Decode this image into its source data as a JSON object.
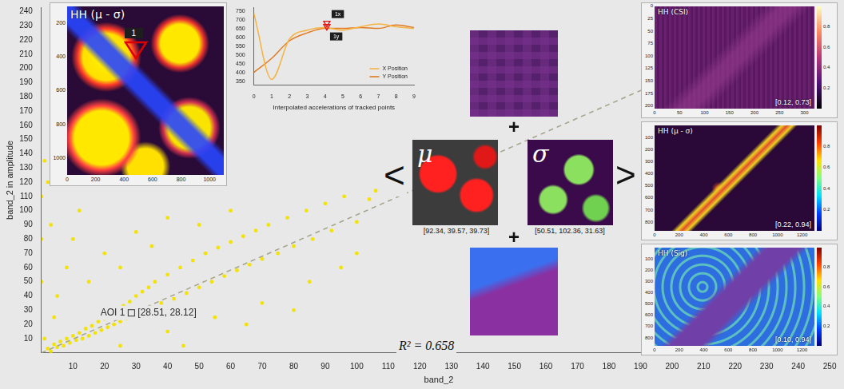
{
  "chart_data": [
    {
      "type": "scatter",
      "x_label": "band_2",
      "y_label": "band_2 in amplitude",
      "xlim": [
        0,
        252
      ],
      "ylim": [
        0,
        243
      ],
      "xticks": [
        10,
        20,
        30,
        40,
        50,
        60,
        70,
        80,
        90,
        100,
        110,
        120,
        130,
        140,
        150,
        160,
        170,
        180,
        190,
        200,
        210,
        220,
        230,
        240,
        250
      ],
      "yticks": [
        10,
        20,
        30,
        40,
        50,
        60,
        70,
        80,
        90,
        100,
        110,
        120,
        130,
        140,
        150,
        160,
        170,
        180,
        190,
        200,
        210,
        220,
        230,
        240
      ],
      "grid": false,
      "series": [
        {
          "type": "scatter",
          "color": "#f2e205",
          "marker": "circle",
          "x": [
            0,
            0,
            0,
            1,
            1,
            2,
            2,
            3,
            3,
            4,
            4,
            5,
            5,
            6,
            7,
            8,
            8,
            9,
            10,
            10,
            11,
            12,
            12,
            13,
            14,
            15,
            15,
            16,
            17,
            18,
            19,
            20,
            20,
            21,
            22,
            23,
            24,
            25,
            25,
            25,
            26,
            27,
            28,
            29,
            30,
            30,
            31,
            32,
            33,
            34,
            35,
            35,
            36,
            38,
            40,
            40,
            40,
            42,
            44,
            45,
            46,
            48,
            50,
            50,
            52,
            54,
            55,
            56,
            58,
            60,
            60,
            62,
            64,
            65,
            66,
            68,
            70,
            70,
            72,
            75,
            78,
            80,
            80,
            84,
            85,
            86,
            90,
            92,
            95,
            96,
            100,
            100,
            104,
            106
          ],
          "y": [
            50,
            80,
            110,
            10,
            135,
            3,
            120,
            1,
            90,
            6,
            25,
            4,
            40,
            8,
            5,
            10,
            60,
            7,
            12,
            80,
            9,
            14,
            100,
            10,
            17,
            12,
            50,
            19,
            14,
            22,
            16,
            24,
            70,
            18,
            27,
            20,
            30,
            22,
            5,
            60,
            33,
            24,
            36,
            26,
            40,
            85,
            28,
            43,
            30,
            46,
            32,
            75,
            50,
            35,
            55,
            15,
            95,
            38,
            60,
            5,
            42,
            65,
            46,
            90,
            70,
            50,
            25,
            74,
            54,
            78,
            100,
            58,
            82,
            20,
            62,
            86,
            66,
            35,
            90,
            70,
            95,
            75,
            30,
            100,
            50,
            80,
            105,
            86,
            60,
            110,
            92,
            70,
            108,
            114
          ]
        },
        {
          "type": "line",
          "color": "#a3a38a",
          "line_style": "dashed",
          "x": [
            0,
            203
          ],
          "y": [
            0,
            197
          ]
        }
      ],
      "annotations": [
        {
          "text": "AOI 1",
          "marker": "square",
          "x": 28.51,
          "y": 28.12,
          "value_text": "[28.51, 28.12]"
        },
        {
          "text": "R² = 0.658"
        }
      ]
    },
    {
      "type": "line",
      "x_label": "Interpolated accelerations of tracked points",
      "x": [
        0,
        1,
        2,
        3,
        4,
        5,
        6,
        7,
        8,
        9
      ],
      "xlim": [
        0,
        9
      ],
      "xticks": [
        0,
        1,
        2,
        3,
        4,
        5,
        6,
        7,
        8,
        9
      ],
      "ylim": [
        330,
        770
      ],
      "yticks": [
        350,
        400,
        450,
        500,
        550,
        600,
        650,
        700,
        750
      ],
      "grid": false,
      "legend": "lower right",
      "series": [
        {
          "name": "X Position",
          "color": "#f5b342",
          "values": [
            735,
            360,
            590,
            640,
            655,
            640,
            660,
            675,
            660,
            650
          ]
        },
        {
          "name": "Y Position",
          "color": "#e07b24",
          "values": [
            400,
            480,
            580,
            625,
            650,
            650,
            655,
            650,
            670,
            655
          ]
        }
      ],
      "annotations": [
        {
          "text": "1x",
          "marker": "triangle",
          "x": 4.1,
          "y": 668
        },
        {
          "text": "1y",
          "marker": "triangle",
          "x": 4.1,
          "y": 650
        }
      ]
    }
  ],
  "images": [
    {
      "title": "HH (μ - σ)",
      "xlim": [
        0,
        1100
      ],
      "ylim": [
        100,
        1100
      ],
      "xticks": [
        0,
        200,
        400,
        600,
        800,
        1000
      ],
      "yticks": [
        200,
        400,
        600,
        800,
        1000
      ],
      "markers": [
        {
          "text": "1",
          "x": 480,
          "y": 360
        }
      ]
    },
    {
      "title": "HH (CSI)",
      "xlim": [
        0,
        320
      ],
      "ylim": [
        0,
        205
      ],
      "xticks": [
        0,
        50,
        100,
        150,
        200,
        250,
        300
      ],
      "yticks": [
        0,
        25,
        50,
        75,
        100,
        125,
        150,
        175,
        200
      ],
      "range_text": "[0.12, 0.73]",
      "colorbar_lim": [
        0,
        1
      ],
      "colorbar_ticks": [
        0.2,
        0.4,
        0.6,
        0.8
      ]
    },
    {
      "title": "HH (μ - σ)",
      "xlim": [
        0,
        1300
      ],
      "ylim": [
        0,
        870
      ],
      "xticks": [
        0,
        200,
        400,
        600,
        800,
        1000,
        1200
      ],
      "yticks": [
        100,
        200,
        300,
        400,
        500,
        600,
        700,
        800
      ],
      "range_text": "[0.22, 0.94]",
      "colorbar_lim": [
        0,
        1
      ],
      "colorbar_ticks": [
        0.2,
        0.4,
        0.6,
        0.8
      ]
    },
    {
      "title": "HH (Sig)",
      "xlim": [
        0,
        1300
      ],
      "ylim": [
        0,
        870
      ],
      "xticks": [
        0,
        200,
        400,
        600,
        800,
        1000,
        1200
      ],
      "yticks": [
        100,
        200,
        300,
        400,
        500,
        600,
        700,
        800
      ],
      "range_text": "[0.10, 0.94]",
      "colorbar_lim": [
        0,
        1
      ],
      "colorbar_ticks": [
        0.2,
        0.4,
        0.6,
        0.8
      ]
    }
  ],
  "composition": {
    "open": "<",
    "close": ">",
    "plus": [
      "+",
      "+"
    ],
    "mu": {
      "symbol": "μ",
      "values_text": "[92.34, 39.57, 39.73]"
    },
    "sigma": {
      "symbol": "σ",
      "values_text": "[50.51, 102.36, 31.63]"
    }
  }
}
